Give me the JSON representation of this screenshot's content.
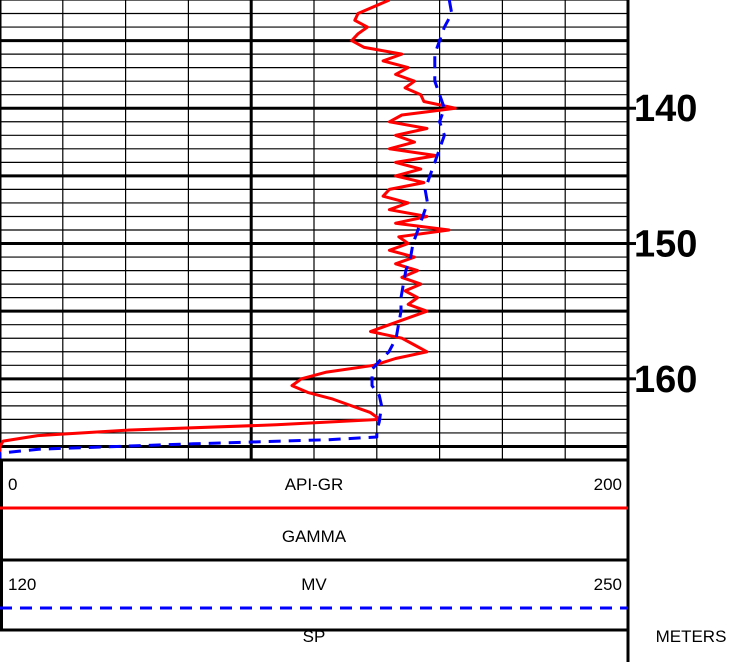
{
  "chart_data": {
    "type": "line",
    "depth_unit": "METERS",
    "depth_range": [
      132,
      166
    ],
    "depth_ticks": [
      140,
      150,
      160
    ],
    "depth_tick_labels": [
      "140",
      "150",
      "160"
    ],
    "grid": true,
    "series": [
      {
        "name": "GAMMA",
        "unit": "API-GR",
        "scale_min": "0",
        "scale_max": "200",
        "xlim": [
          0,
          200
        ],
        "color": "#ff0000",
        "line_style": "solid",
        "points": [
          [
            132.0,
            124
          ],
          [
            133.0,
            114
          ],
          [
            133.5,
            113
          ],
          [
            134.0,
            117
          ],
          [
            134.5,
            114
          ],
          [
            135.0,
            112
          ],
          [
            135.5,
            116
          ],
          [
            136.0,
            128
          ],
          [
            136.5,
            122
          ],
          [
            137.0,
            130
          ],
          [
            137.5,
            126
          ],
          [
            138.0,
            132
          ],
          [
            138.5,
            129
          ],
          [
            139.0,
            134
          ],
          [
            139.5,
            135
          ],
          [
            140.0,
            145
          ],
          [
            140.5,
            128
          ],
          [
            141.0,
            124
          ],
          [
            141.5,
            136
          ],
          [
            142.0,
            126
          ],
          [
            142.5,
            132
          ],
          [
            143.0,
            124
          ],
          [
            143.5,
            139
          ],
          [
            144.0,
            126
          ],
          [
            144.5,
            134
          ],
          [
            145.0,
            126
          ],
          [
            145.5,
            135
          ],
          [
            146.0,
            124
          ],
          [
            146.5,
            122
          ],
          [
            147.0,
            130
          ],
          [
            147.5,
            124
          ],
          [
            148.0,
            136
          ],
          [
            148.5,
            126
          ],
          [
            149.0,
            143
          ],
          [
            149.5,
            127
          ],
          [
            150.0,
            130
          ],
          [
            150.5,
            124
          ],
          [
            151.0,
            132
          ],
          [
            151.5,
            126
          ],
          [
            152.0,
            133
          ],
          [
            152.5,
            128
          ],
          [
            153.0,
            134
          ],
          [
            153.5,
            129
          ],
          [
            154.0,
            133
          ],
          [
            154.5,
            130
          ],
          [
            155.0,
            136
          ],
          [
            155.5,
            130
          ],
          [
            156.0,
            124
          ],
          [
            156.5,
            118
          ],
          [
            157.0,
            128
          ],
          [
            157.5,
            132
          ],
          [
            158.0,
            136
          ],
          [
            158.5,
            126
          ],
          [
            159.0,
            119
          ],
          [
            159.5,
            104
          ],
          [
            160.0,
            96
          ],
          [
            160.5,
            93
          ],
          [
            161.0,
            98
          ],
          [
            161.5,
            106
          ],
          [
            162.0,
            112
          ],
          [
            162.5,
            118
          ],
          [
            163.0,
            121
          ],
          [
            163.4,
            88
          ],
          [
            163.8,
            40
          ],
          [
            164.2,
            12
          ],
          [
            164.6,
            1
          ],
          [
            165.0,
            0
          ],
          [
            166.0,
            0
          ]
        ]
      },
      {
        "name": "SP",
        "unit": "MV",
        "scale_min": "120",
        "scale_max": "250",
        "xlim": [
          120,
          250
        ],
        "color": "#0000ff",
        "line_style": "dashed",
        "points": [
          [
            132.0,
            213
          ],
          [
            133.0,
            213.5
          ],
          [
            134.0,
            212
          ],
          [
            135.0,
            211
          ],
          [
            136.0,
            210
          ],
          [
            137.0,
            210
          ],
          [
            138.0,
            210
          ],
          [
            139.0,
            211
          ],
          [
            140.0,
            212
          ],
          [
            141.0,
            211
          ],
          [
            142.0,
            212
          ],
          [
            143.0,
            211
          ],
          [
            144.0,
            210
          ],
          [
            145.0,
            209
          ],
          [
            146.0,
            208
          ],
          [
            147.0,
            208.5
          ],
          [
            148.0,
            207.5
          ],
          [
            149.0,
            206.5
          ],
          [
            150.0,
            205.5
          ],
          [
            151.0,
            205
          ],
          [
            152.0,
            204
          ],
          [
            153.0,
            203.5
          ],
          [
            154.0,
            203
          ],
          [
            155.0,
            203
          ],
          [
            156.0,
            202.5
          ],
          [
            157.0,
            202
          ],
          [
            158.0,
            200.5
          ],
          [
            158.7,
            198.5
          ],
          [
            159.3,
            197
          ],
          [
            160.0,
            197
          ],
          [
            160.5,
            197
          ],
          [
            161.2,
            198.5
          ],
          [
            162.0,
            199
          ],
          [
            163.2,
            198.5
          ],
          [
            163.8,
            198
          ],
          [
            164.3,
            198
          ],
          [
            164.5,
            188
          ],
          [
            164.8,
            160
          ],
          [
            165.2,
            128
          ],
          [
            165.5,
            120
          ],
          [
            166.0,
            120
          ]
        ]
      }
    ]
  }
}
